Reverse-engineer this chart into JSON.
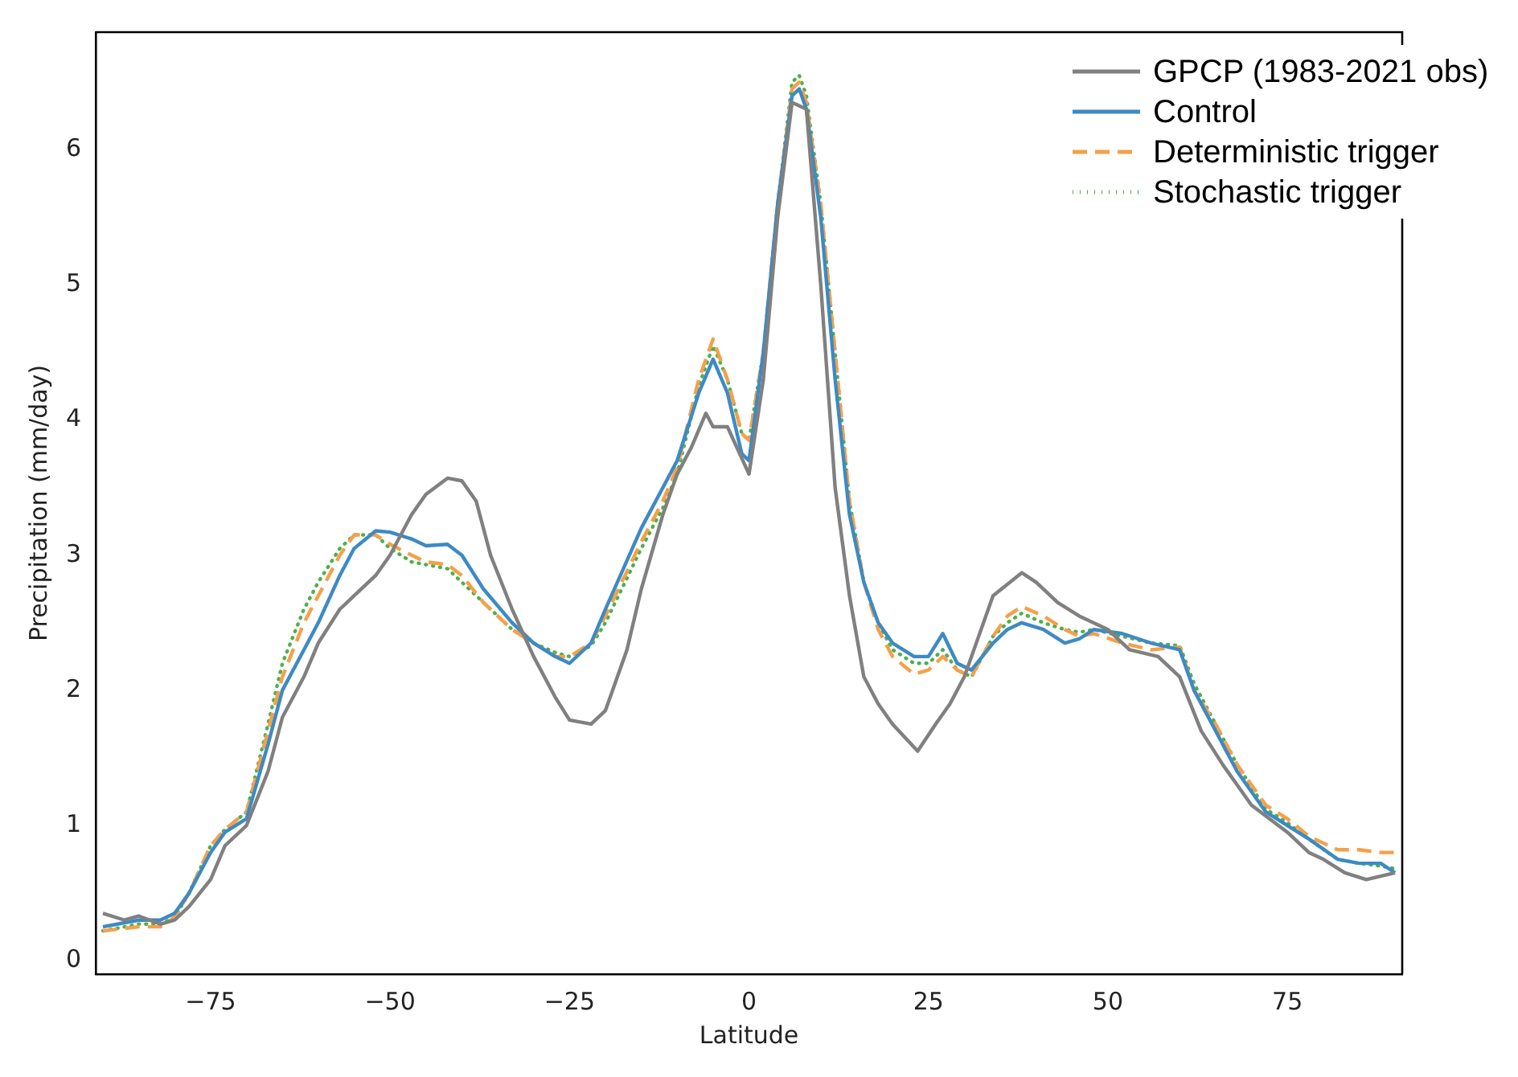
{
  "chart_data": {
    "type": "line",
    "xlabel": "Latitude",
    "ylabel": "Precipitation (mm/day)",
    "xlim": [
      -91,
      91
    ],
    "ylim": [
      -0.1,
      6.87
    ],
    "xticks": [
      {
        "value": -75,
        "label": "−75"
      },
      {
        "value": -50,
        "label": "−50"
      },
      {
        "value": -25,
        "label": "−25"
      },
      0,
      25,
      50,
      75
    ],
    "yticks": [
      0,
      1,
      2,
      3,
      4,
      5,
      6
    ],
    "grid": false,
    "legend": "top right",
    "marker": "none",
    "series": [
      {
        "name": "GPCP (1983-2021 obs)",
        "color": "#808080",
        "line_style": "solid",
        "x": [
          -90,
          -87,
          -85,
          -82,
          -80,
          -78,
          -75,
          -73,
          -70,
          -67,
          -65,
          -62,
          -60,
          -57,
          -55,
          -52,
          -50,
          -47,
          -45,
          -42,
          -40,
          -38,
          -36,
          -33,
          -30,
          -27,
          -25,
          -22,
          -20,
          -17,
          -15,
          -12,
          -10,
          -8,
          -6,
          -5,
          -3,
          0,
          2,
          4,
          6,
          8,
          10,
          12,
          14,
          16,
          18,
          20,
          23.5,
          26,
          28,
          30,
          32,
          34,
          38,
          40,
          43,
          46,
          50,
          53,
          57,
          60,
          63,
          66,
          70,
          75,
          78,
          80,
          83,
          86,
          90
        ],
        "values": [
          0.35,
          0.3,
          0.33,
          0.27,
          0.3,
          0.4,
          0.6,
          0.85,
          1.0,
          1.4,
          1.8,
          2.1,
          2.35,
          2.6,
          2.7,
          2.85,
          3.0,
          3.3,
          3.45,
          3.57,
          3.55,
          3.4,
          3.0,
          2.6,
          2.25,
          1.95,
          1.78,
          1.75,
          1.85,
          2.3,
          2.75,
          3.3,
          3.6,
          3.8,
          4.05,
          3.95,
          3.95,
          3.6,
          4.3,
          5.5,
          6.35,
          6.3,
          5.0,
          3.5,
          2.7,
          2.1,
          1.9,
          1.75,
          1.55,
          1.75,
          1.9,
          2.1,
          2.4,
          2.7,
          2.87,
          2.8,
          2.65,
          2.55,
          2.45,
          2.3,
          2.25,
          2.1,
          1.7,
          1.45,
          1.15,
          0.95,
          0.8,
          0.75,
          0.65,
          0.6,
          0.65
        ]
      },
      {
        "name": "Control",
        "color": "#3d8ac4",
        "line_style": "solid",
        "x": [
          -90,
          -85,
          -82,
          -80,
          -78,
          -75,
          -73,
          -70,
          -67,
          -65,
          -62,
          -60,
          -57,
          -55,
          -52,
          -50,
          -47,
          -45,
          -42,
          -40,
          -37,
          -33,
          -30,
          -27,
          -25,
          -22,
          -20,
          -15,
          -12,
          -10,
          -7,
          -5,
          -3,
          -1,
          0,
          2,
          4,
          6,
          7,
          8,
          10,
          12,
          14,
          16,
          18,
          20,
          23,
          25,
          27,
          29,
          31,
          34,
          36,
          38,
          41,
          44,
          46,
          48,
          52,
          56,
          60,
          62,
          65,
          68,
          72,
          75,
          78,
          82,
          85,
          88,
          90
        ],
        "values": [
          0.25,
          0.3,
          0.3,
          0.35,
          0.5,
          0.8,
          0.95,
          1.05,
          1.6,
          2.0,
          2.3,
          2.5,
          2.85,
          3.05,
          3.18,
          3.17,
          3.12,
          3.07,
          3.08,
          3.0,
          2.75,
          2.5,
          2.35,
          2.25,
          2.2,
          2.35,
          2.6,
          3.2,
          3.5,
          3.7,
          4.2,
          4.45,
          4.2,
          3.75,
          3.7,
          4.5,
          5.6,
          6.4,
          6.45,
          6.3,
          5.5,
          4.3,
          3.3,
          2.8,
          2.5,
          2.35,
          2.25,
          2.25,
          2.42,
          2.2,
          2.15,
          2.35,
          2.45,
          2.5,
          2.45,
          2.35,
          2.38,
          2.45,
          2.42,
          2.35,
          2.3,
          2.0,
          1.7,
          1.4,
          1.1,
          1.0,
          0.9,
          0.75,
          0.72,
          0.72,
          0.65
        ]
      },
      {
        "name": "Deterministic trigger",
        "color": "#f5a04a",
        "line_style": "dashed",
        "x": [
          -90,
          -85,
          -82,
          -80,
          -78,
          -75,
          -73,
          -70,
          -67,
          -65,
          -62,
          -60,
          -57,
          -55,
          -52,
          -50,
          -47,
          -45,
          -42,
          -40,
          -37,
          -33,
          -30,
          -27,
          -25,
          -22,
          -20,
          -15,
          -12,
          -10,
          -7,
          -5,
          -3,
          -1,
          0,
          2,
          4,
          6,
          7,
          8,
          10,
          12,
          14,
          16,
          18,
          20,
          23,
          25,
          27,
          29,
          31,
          34,
          36,
          38,
          41,
          44,
          46,
          48,
          52,
          56,
          60,
          62,
          65,
          68,
          72,
          75,
          78,
          82,
          85,
          88,
          90
        ],
        "values": [
          0.22,
          0.25,
          0.25,
          0.32,
          0.5,
          0.85,
          0.97,
          1.1,
          1.7,
          2.1,
          2.5,
          2.7,
          3.0,
          3.15,
          3.15,
          3.08,
          3.0,
          2.95,
          2.93,
          2.85,
          2.65,
          2.45,
          2.35,
          2.25,
          2.25,
          2.35,
          2.55,
          3.1,
          3.4,
          3.65,
          4.3,
          4.6,
          4.3,
          3.9,
          3.85,
          4.5,
          5.6,
          6.45,
          6.5,
          6.35,
          5.6,
          4.5,
          3.4,
          2.8,
          2.45,
          2.25,
          2.12,
          2.15,
          2.25,
          2.15,
          2.1,
          2.4,
          2.55,
          2.62,
          2.55,
          2.45,
          2.4,
          2.42,
          2.35,
          2.3,
          2.32,
          2.0,
          1.75,
          1.45,
          1.15,
          1.05,
          0.92,
          0.82,
          0.82,
          0.8,
          0.8
        ]
      },
      {
        "name": "Stochastic trigger",
        "color": "#4db04d",
        "line_style": "dotted",
        "x": [
          -90,
          -85,
          -82,
          -80,
          -78,
          -75,
          -73,
          -70,
          -67,
          -65,
          -62,
          -60,
          -57,
          -55,
          -52,
          -50,
          -47,
          -45,
          -42,
          -40,
          -37,
          -33,
          -30,
          -27,
          -25,
          -22,
          -20,
          -15,
          -12,
          -10,
          -7,
          -5,
          -3,
          -1,
          0,
          2,
          4,
          6,
          7,
          8,
          10,
          12,
          14,
          16,
          18,
          20,
          23,
          25,
          27,
          29,
          31,
          34,
          36,
          38,
          41,
          44,
          46,
          48,
          52,
          56,
          60,
          62,
          65,
          68,
          72,
          75,
          78,
          82,
          85,
          88,
          90
        ],
        "values": [
          0.22,
          0.27,
          0.27,
          0.32,
          0.5,
          0.85,
          0.97,
          1.1,
          1.75,
          2.2,
          2.6,
          2.8,
          3.05,
          3.15,
          3.15,
          3.05,
          2.95,
          2.93,
          2.9,
          2.8,
          2.65,
          2.45,
          2.35,
          2.28,
          2.25,
          2.33,
          2.5,
          3.05,
          3.35,
          3.6,
          4.25,
          4.55,
          4.3,
          3.9,
          3.85,
          4.5,
          5.6,
          6.5,
          6.55,
          6.4,
          5.6,
          4.5,
          3.4,
          2.8,
          2.5,
          2.3,
          2.2,
          2.2,
          2.3,
          2.15,
          2.1,
          2.4,
          2.5,
          2.57,
          2.5,
          2.45,
          2.43,
          2.45,
          2.4,
          2.35,
          2.33,
          2.05,
          1.75,
          1.45,
          1.12,
          1.02,
          0.9,
          0.75,
          0.72,
          0.7,
          0.68
        ]
      }
    ]
  }
}
